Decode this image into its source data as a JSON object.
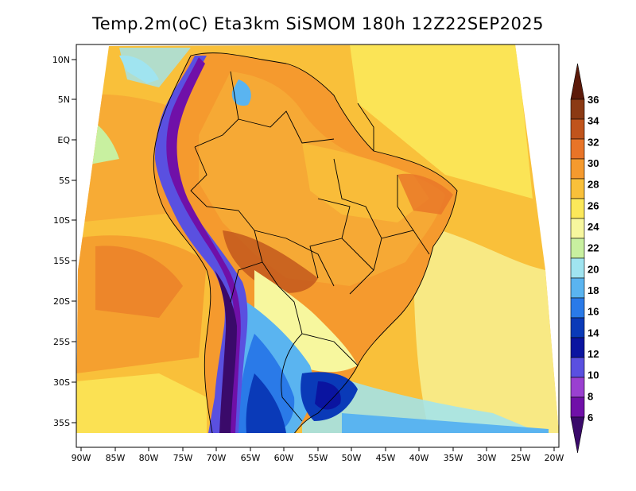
{
  "title": "Temp.2m(oC) Eta3km SiSMOM 180h 12Z22SEP2025",
  "map": {
    "lat_labels": [
      "10N",
      "5N",
      "EQ",
      "5S",
      "10S",
      "15S",
      "20S",
      "25S",
      "30S",
      "35S"
    ],
    "lon_labels": [
      "90W",
      "85W",
      "80W",
      "75W",
      "70W",
      "65W",
      "60W",
      "55W",
      "50W",
      "45W",
      "40W",
      "35W",
      "30W",
      "25W",
      "20W"
    ]
  },
  "colorbar": {
    "labels": [
      "36",
      "34",
      "32",
      "30",
      "28",
      "26",
      "24",
      "22",
      "20",
      "18",
      "16",
      "14",
      "12",
      "10",
      "8",
      "6"
    ],
    "colors": [
      "#f0f0c8",
      "#5c1a0a",
      "#8b3a14",
      "#c0541c",
      "#e87428",
      "#f59a2e",
      "#f9c03a",
      "#fbe85a",
      "#f7f79e",
      "#c8f0a0",
      "#a0e4f0",
      "#5ab4f0",
      "#2a7ae8",
      "#0a3ab8",
      "#0a14a0",
      "#5a50e0",
      "#9a40d0",
      "#7010a8",
      "#3a0a6a"
    ]
  }
}
